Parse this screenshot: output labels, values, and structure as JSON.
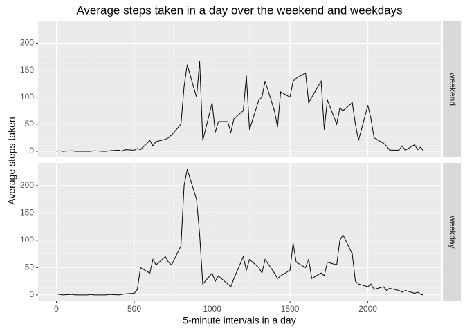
{
  "chart_data": {
    "type": "line",
    "facet": "rows",
    "title": "Average steps taken in a day over the weekend and weekdays",
    "x_label": "5-minute intervals in a day",
    "y_label": "Average steps taken",
    "xlim": [
      -117.75,
      2472.75
    ],
    "ylim": [
      -11.5,
      241.5
    ],
    "xticks": [
      0,
      500,
      1000,
      1500,
      2000
    ],
    "yticks": [
      0,
      50,
      100,
      150,
      200
    ],
    "grid": true,
    "x": [
      0,
      20,
      40,
      100,
      120,
      140,
      200,
      220,
      240,
      300,
      320,
      340,
      400,
      420,
      440,
      500,
      520,
      540,
      600,
      620,
      640,
      700,
      720,
      740,
      800,
      820,
      840,
      900,
      920,
      940,
      1000,
      1020,
      1040,
      1100,
      1120,
      1140,
      1200,
      1220,
      1240,
      1300,
      1320,
      1340,
      1400,
      1420,
      1440,
      1500,
      1520,
      1540,
      1600,
      1620,
      1640,
      1700,
      1720,
      1740,
      1800,
      1820,
      1840,
      1900,
      1920,
      1940,
      2000,
      2020,
      2040,
      2100,
      2120,
      2140,
      2200,
      2220,
      2240,
      2300,
      2320,
      2340,
      2355
    ],
    "series": [
      {
        "name": "weekend",
        "color": "#000000",
        "values": [
          0,
          1,
          0,
          1,
          0,
          0,
          0,
          0,
          1,
          0,
          0,
          1,
          2,
          0,
          3,
          2,
          5,
          3,
          20,
          10,
          18,
          22,
          25,
          30,
          50,
          120,
          160,
          100,
          166,
          20,
          90,
          35,
          55,
          55,
          35,
          60,
          75,
          140,
          40,
          95,
          100,
          130,
          75,
          45,
          110,
          100,
          130,
          135,
          145,
          90,
          100,
          130,
          40,
          95,
          50,
          80,
          75,
          90,
          50,
          20,
          85,
          60,
          25,
          15,
          10,
          2,
          2,
          10,
          2,
          12,
          3,
          8,
          1
        ]
      },
      {
        "name": "weekday",
        "color": "#000000",
        "values": [
          2,
          1,
          0,
          1,
          0,
          0,
          0,
          1,
          0,
          0,
          0,
          1,
          0,
          1,
          2,
          3,
          10,
          50,
          40,
          65,
          55,
          70,
          60,
          55,
          90,
          200,
          230,
          175,
          110,
          20,
          40,
          25,
          35,
          20,
          15,
          30,
          70,
          45,
          65,
          50,
          40,
          65,
          40,
          30,
          35,
          45,
          95,
          60,
          50,
          65,
          30,
          40,
          35,
          60,
          55,
          100,
          110,
          75,
          25,
          20,
          15,
          20,
          10,
          15,
          8,
          12,
          8,
          5,
          8,
          3,
          5,
          1,
          0
        ]
      }
    ]
  }
}
